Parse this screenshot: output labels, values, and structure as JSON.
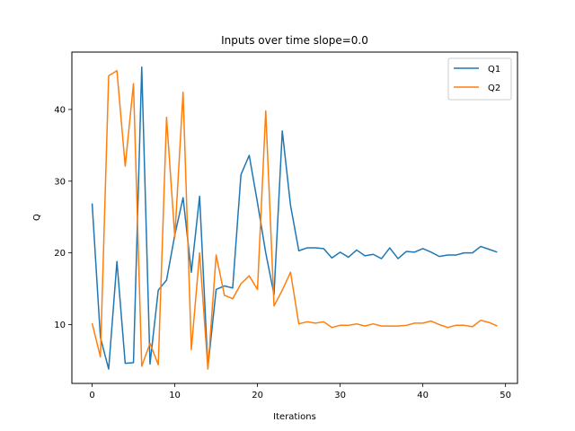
{
  "chart_data": {
    "type": "line",
    "title": "Inputs over time slope=0.0",
    "xlabel": "Iterations",
    "ylabel": "Q",
    "xlim": [
      -2.45,
      51.45
    ],
    "ylim": [
      1.8,
      48.0
    ],
    "xticks": [
      0,
      10,
      20,
      30,
      40,
      50
    ],
    "yticks": [
      10,
      20,
      30,
      40
    ],
    "grid": false,
    "legend_position": "top-right",
    "series": [
      {
        "name": "Q1",
        "color": "#1f77b4",
        "x": [
          0,
          1,
          2,
          3,
          4,
          5,
          6,
          7,
          8,
          9,
          10,
          11,
          12,
          13,
          14,
          15,
          16,
          17,
          18,
          19,
          20,
          21,
          22,
          23,
          24,
          25,
          26,
          27,
          28,
          29,
          30,
          31,
          32,
          33,
          34,
          35,
          36,
          37,
          38,
          39,
          40,
          41,
          42,
          43,
          44,
          45,
          46,
          47,
          48,
          49
        ],
        "values": [
          26.9,
          8.2,
          3.8,
          18.8,
          4.6,
          4.7,
          45.9,
          4.5,
          14.8,
          16.2,
          22.5,
          27.7,
          17.3,
          27.9,
          4.0,
          14.9,
          15.4,
          15.1,
          30.9,
          33.6,
          27.0,
          20.0,
          14.2,
          37.0,
          26.6,
          20.3,
          20.7,
          20.7,
          20.6,
          19.3,
          20.1,
          19.4,
          20.4,
          19.6,
          19.8,
          19.2,
          20.7,
          19.2,
          20.2,
          20.1,
          20.6,
          20.1,
          19.5,
          19.7,
          19.7,
          20.0,
          20.0,
          20.9,
          20.5,
          20.1
        ]
      },
      {
        "name": "Q2",
        "color": "#ff7f0e",
        "x": [
          0,
          1,
          2,
          3,
          4,
          5,
          6,
          7,
          8,
          9,
          10,
          11,
          12,
          13,
          14,
          15,
          16,
          17,
          18,
          19,
          20,
          21,
          22,
          23,
          24,
          25,
          26,
          27,
          28,
          29,
          30,
          31,
          32,
          33,
          34,
          35,
          36,
          37,
          38,
          39,
          40,
          41,
          42,
          43,
          44,
          45,
          46,
          47,
          48,
          49
        ],
        "values": [
          10.2,
          5.5,
          44.7,
          45.4,
          32.1,
          43.6,
          4.2,
          7.4,
          4.4,
          38.9,
          22.2,
          42.4,
          6.5,
          20.0,
          3.8,
          19.7,
          14.1,
          13.6,
          15.7,
          16.8,
          14.9,
          39.8,
          12.6,
          14.8,
          17.3,
          10.1,
          10.4,
          10.2,
          10.4,
          9.6,
          9.9,
          9.9,
          10.1,
          9.8,
          10.1,
          9.8,
          9.8,
          9.8,
          9.9,
          10.2,
          10.2,
          10.5,
          10.0,
          9.6,
          9.9,
          9.9,
          9.7,
          10.6,
          10.3,
          9.8
        ]
      }
    ]
  }
}
